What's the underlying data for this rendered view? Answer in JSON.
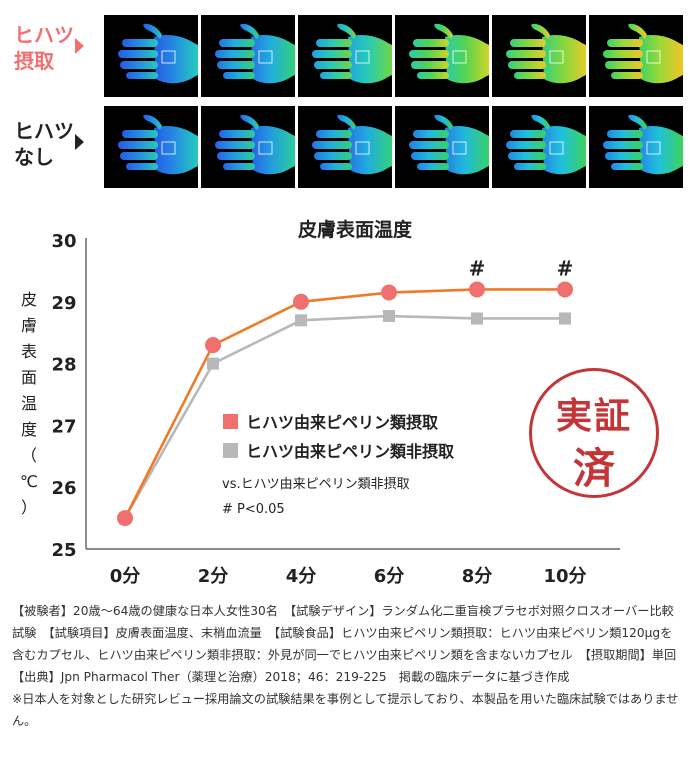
{
  "thermal": {
    "row_with": {
      "label_lines": [
        "ヒハツ",
        "摂取"
      ],
      "levels": [
        0.35,
        0.45,
        0.58,
        0.75,
        0.82,
        0.86
      ]
    },
    "row_without": {
      "label_lines": [
        "ヒハツ",
        "なし"
      ],
      "levels": [
        0.35,
        0.4,
        0.45,
        0.48,
        0.5,
        0.5
      ]
    }
  },
  "chart_data": {
    "type": "line",
    "title": "皮膚表面温度",
    "ylabel_chars": [
      "皮",
      "膚",
      "表",
      "面",
      "温",
      "度",
      "（",
      "℃",
      "）"
    ],
    "categories": [
      "0分",
      "2分",
      "4分",
      "6分",
      "8分",
      "10分"
    ],
    "ylim": [
      25,
      30
    ],
    "yticks": [
      "25",
      "26",
      "27",
      "28",
      "29",
      "30"
    ],
    "series": [
      {
        "name": "ヒハツ由来ピペリン類摂取",
        "values": [
          25.5,
          28.3,
          29.0,
          29.15,
          29.2,
          29.2
        ],
        "color": "#f07070",
        "line_color": "#f07a28"
      },
      {
        "name": "ヒハツ由来ピペリン類非摂取",
        "values": [
          25.5,
          28.0,
          28.7,
          28.77,
          28.73,
          28.73
        ],
        "color": "#b8b8b8",
        "line_color": "#b8b8b8"
      }
    ],
    "significance_marks": [
      {
        "category": "8分",
        "label": "#"
      },
      {
        "category": "10分",
        "label": "#"
      }
    ],
    "note_line1": "vs.ヒハツ由来ピペリン類非摂取",
    "note_line2": "# P<0.05",
    "grid": false
  },
  "stamp": {
    "line1": "実証",
    "line2": "済",
    "color": "#c4353a"
  },
  "footnote": {
    "body": "【被験者】20歳～64歳の健康な日本人女性30名　【試験デザイン】ランダム化二重盲検プラセボ対照クロスオーバー比較試験　【試験項目】皮膚表面温度、末梢血流量　【試験食品】ヒハツ由来ピペリン類摂取：ヒハツ由来ピペリン類120μgを含むカプセル、ヒハツ由来ピペリン類非摂取：外見が同一でヒハツ由来ピペリン類を含まないカプセル　【摂取期間】単回　【出典】Jpn Pharmacol Ther（薬理と治療）2018；46：219-225　掲載の臨床データに基づき作成",
    "disclaimer": "※日本人を対象とした研究レビュー採用論文の試験結果を事例として提示しており、本製品を用いた臨床試験ではありません。"
  }
}
